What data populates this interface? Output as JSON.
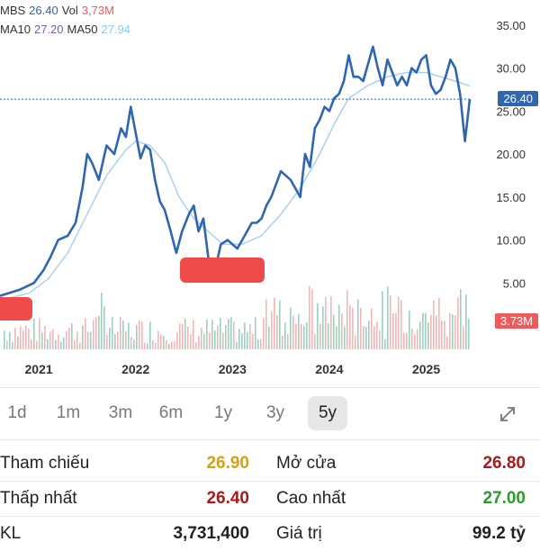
{
  "legend": {
    "symbol": "MBS",
    "price": "26.40",
    "vol_label": "Vol",
    "vol_value": "3,73M",
    "ma10_label": "MA10",
    "ma10_value": "27.20",
    "ma50_label": "MA50",
    "ma50_value": "27.94"
  },
  "colors": {
    "price_line": "#2f66b0",
    "ma_line": "#a9d0ee",
    "ma10_text": "#7b5ea7",
    "ma50_text": "#8ec8ef",
    "vol_text": "#e85a5a",
    "price_badge": "#2f66b0",
    "vol_badge": "#ef5a5a",
    "up_bar": "#4fa88a",
    "down_bar": "#e57a7a",
    "highlight": "#ef4b4b"
  },
  "price_badge": "26.40",
  "volume_badge": "3.73M",
  "chart_data": {
    "type": "line",
    "x_ticks": [
      "2021",
      "2022",
      "2023",
      "2024",
      "2025"
    ],
    "y_ticks": [
      "35.00",
      "30.00",
      "25.00",
      "20.00",
      "15.00",
      "10.00",
      "5.00"
    ],
    "ylim": [
      0,
      35
    ],
    "xlim": [
      2020.6,
      2025.45
    ],
    "reference_line": 26.4,
    "series": [
      {
        "name": "MBS",
        "x": [
          2020.6,
          2020.8,
          2020.95,
          2021.05,
          2021.12,
          2021.2,
          2021.3,
          2021.38,
          2021.45,
          2021.5,
          2021.55,
          2021.62,
          2021.7,
          2021.78,
          2021.85,
          2021.9,
          2021.95,
          2022.0,
          2022.05,
          2022.1,
          2022.15,
          2022.2,
          2022.25,
          2022.3,
          2022.35,
          2022.42,
          2022.48,
          2022.55,
          2022.6,
          2022.65,
          2022.7,
          2022.75,
          2022.82,
          2022.88,
          2022.95,
          2023.0,
          2023.05,
          2023.1,
          2023.15,
          2023.2,
          2023.25,
          2023.3,
          2023.35,
          2023.4,
          2023.5,
          2023.6,
          2023.7,
          2023.75,
          2023.8,
          2023.85,
          2023.9,
          2023.95,
          2024.0,
          2024.05,
          2024.1,
          2024.15,
          2024.2,
          2024.25,
          2024.3,
          2024.35,
          2024.4,
          2024.45,
          2024.5,
          2024.55,
          2024.6,
          2024.65,
          2024.7,
          2024.75,
          2024.8,
          2024.85,
          2024.9,
          2024.95,
          2025.0,
          2025.05,
          2025.1,
          2025.15,
          2025.2,
          2025.25,
          2025.3,
          2025.35,
          2025.4,
          2025.45
        ],
        "values": [
          3.5,
          4.2,
          5.0,
          6.5,
          8.0,
          10.0,
          10.5,
          12.0,
          16.0,
          20.0,
          19.0,
          17.0,
          21.0,
          20.0,
          23.0,
          22.0,
          25.5,
          22.5,
          19.5,
          21.0,
          20.5,
          17.0,
          14.5,
          13.5,
          11.5,
          8.5,
          11.0,
          13.0,
          14.0,
          11.0,
          12.5,
          8.0,
          6.5,
          9.5,
          10.0,
          9.5,
          9.0,
          10.0,
          11.0,
          12.0,
          12.0,
          12.5,
          14.0,
          15.0,
          18.0,
          17.0,
          15.0,
          20.0,
          18.5,
          23.0,
          24.0,
          25.5,
          25.0,
          26.5,
          27.0,
          28.5,
          31.5,
          29.0,
          29.0,
          28.5,
          30.5,
          32.5,
          30.0,
          28.0,
          31.0,
          29.5,
          28.0,
          29.0,
          28.0,
          30.0,
          29.5,
          31.0,
          31.5,
          28.0,
          27.0,
          27.5,
          29.0,
          31.0,
          30.0,
          27.0,
          21.5,
          26.4
        ]
      },
      {
        "name": "MA50",
        "x": [
          2020.6,
          2020.9,
          2021.1,
          2021.3,
          2021.5,
          2021.7,
          2021.9,
          2022.0,
          2022.15,
          2022.3,
          2022.45,
          2022.6,
          2022.75,
          2022.9,
          2023.1,
          2023.3,
          2023.5,
          2023.7,
          2023.9,
          2024.05,
          2024.2,
          2024.4,
          2024.6,
          2024.8,
          2025.0,
          2025.15,
          2025.3,
          2025.45
        ],
        "values": [
          3.0,
          3.8,
          5.5,
          8.5,
          13.0,
          17.5,
          20.5,
          21.5,
          21.0,
          19.0,
          15.0,
          12.5,
          11.0,
          9.5,
          9.5,
          10.5,
          13.0,
          16.0,
          20.0,
          23.5,
          26.5,
          28.0,
          29.0,
          29.5,
          29.5,
          29.0,
          28.5,
          27.94
        ]
      }
    ],
    "volume": {
      "badge": "3.73M",
      "note": "volume bars shown with no printed scale"
    }
  },
  "ranges": [
    "1d",
    "1m",
    "3m",
    "6m",
    "1y",
    "3y",
    "5y"
  ],
  "active_range": "5y",
  "stats": [
    {
      "label": "Tham chiếu",
      "value": "26.90",
      "color": "#d4a20a",
      "label2": "Mở cửa",
      "value2": "26.80",
      "color2": "#a51c1c"
    },
    {
      "label": "Thấp nhất",
      "value": "26.40",
      "color": "#a51c1c",
      "label2": "Cao nhất",
      "value2": "27.00",
      "color2": "#2a9a2a"
    },
    {
      "label": "KL",
      "value": "3,731,400",
      "color": "#222222",
      "label2": "Giá trị",
      "value2": "99.2 tỷ",
      "color2": "#222222"
    }
  ]
}
